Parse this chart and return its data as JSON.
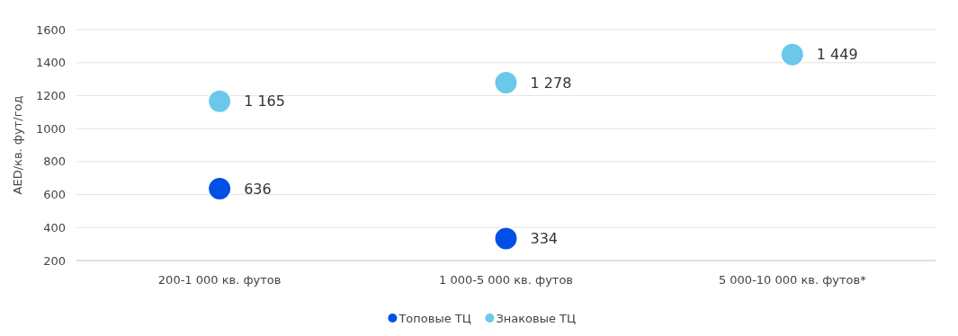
{
  "chart_data": {
    "type": "scatter",
    "ylabel": "AED/кв. фут/год",
    "categories": [
      "200-1 000 кв. футов",
      "1 000-5 000 кв. футов",
      "5 000-10 000 кв. футов*"
    ],
    "series": [
      {
        "name": "Топовые ТЦ",
        "color": "#0050e6",
        "values": [
          636,
          334,
          null
        ],
        "value_labels": [
          "636",
          "334",
          null
        ]
      },
      {
        "name": "Знаковые ТЦ",
        "color": "#6cc8ea",
        "values": [
          1165,
          1278,
          1449
        ],
        "value_labels": [
          "1 165",
          "1 278",
          "1 449"
        ]
      }
    ],
    "ylim": [
      200,
      1600
    ],
    "yticks": [
      200,
      400,
      600,
      800,
      1000,
      1200,
      1400,
      1600
    ],
    "grid": "y",
    "legend": "bottom",
    "marker": "circle"
  }
}
